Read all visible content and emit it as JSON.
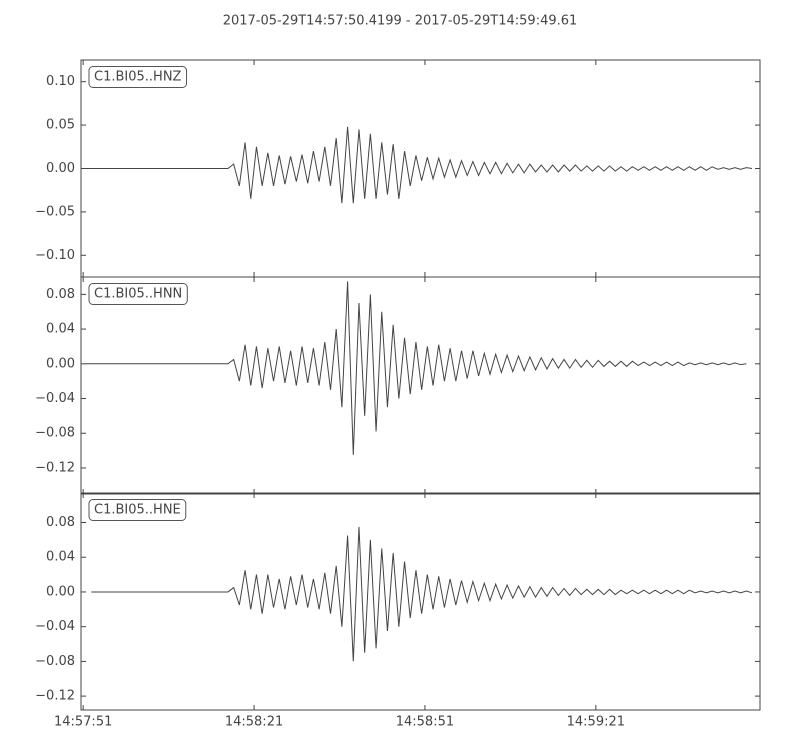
{
  "chart_data": {
    "type": "line",
    "title": "2017-05-29T14:57:50.4199  -  2017-05-29T14:59:49.61",
    "x": [
      1,
      2,
      3,
      4,
      5,
      6,
      7,
      8,
      9,
      10,
      11,
      12,
      13,
      14,
      15,
      16,
      17,
      18,
      19,
      20,
      21,
      22,
      23,
      24,
      25,
      26,
      27,
      28,
      29,
      30,
      31,
      32,
      33,
      34,
      35,
      36,
      37,
      38,
      39,
      40,
      41,
      42,
      43,
      44,
      45,
      46,
      47,
      48,
      49,
      50,
      51,
      52,
      53,
      54,
      55,
      56,
      57,
      58,
      59,
      60,
      61,
      62,
      63,
      64,
      65,
      66,
      67,
      68,
      69,
      70,
      71,
      72,
      73,
      74,
      75,
      76,
      77,
      78,
      79,
      80,
      81,
      82,
      83,
      84,
      85,
      86,
      87,
      88,
      89,
      90,
      91,
      92,
      93,
      94,
      95,
      96,
      97,
      98,
      99,
      100,
      101,
      102,
      103,
      104,
      105,
      106,
      107,
      108,
      109,
      110,
      111,
      112,
      113,
      114,
      115,
      116,
      117,
      118
    ],
    "xlim": [
      0.2,
      119.4
    ],
    "xticks": [
      {
        "value": 0.58,
        "label": "14:57:51"
      },
      {
        "value": 30.58,
        "label": "14:58:21"
      },
      {
        "value": 60.58,
        "label": "14:58:51"
      },
      {
        "value": 90.58,
        "label": "14:59:21"
      }
    ],
    "panels": [
      {
        "ylim": [
          -0.125,
          0.125
        ],
        "yticks": [
          {
            "value": 0.1,
            "label": "0.10"
          },
          {
            "value": 0.05,
            "label": "0.05"
          },
          {
            "value": 0,
            "label": "0.00"
          },
          {
            "value": -0.05,
            "label": "−0.05"
          },
          {
            "value": -0.1,
            "label": "−0.10"
          }
        ],
        "series": [
          {
            "name": "C1.BI05..HNZ",
            "color": "#444444",
            "values": [
              0,
              0,
              0,
              0,
              0,
              0,
              0,
              0,
              0,
              0,
              0,
              0,
              0,
              0,
              0,
              0,
              0,
              0,
              0,
              0,
              0,
              0,
              0,
              0,
              0,
              0,
              0.005,
              -0.02,
              0.03,
              -0.035,
              0.025,
              -0.02,
              0.018,
              -0.02,
              0.015,
              -0.018,
              0.014,
              -0.015,
              0.016,
              -0.017,
              0.02,
              -0.015,
              0.025,
              -0.02,
              0.035,
              -0.04,
              0.048,
              -0.04,
              0.045,
              -0.035,
              0.04,
              -0.035,
              0.03,
              -0.03,
              0.028,
              -0.035,
              0.02,
              -0.02,
              0.015,
              -0.014,
              0.013,
              -0.012,
              0.012,
              -0.01,
              0.01,
              -0.01,
              0.009,
              -0.008,
              0.008,
              -0.008,
              0.007,
              -0.006,
              0.007,
              -0.006,
              0.006,
              -0.005,
              0.005,
              -0.005,
              0.005,
              -0.004,
              0.004,
              -0.004,
              0.004,
              -0.004,
              0.004,
              -0.003,
              0.004,
              -0.003,
              0.003,
              -0.003,
              0.003,
              -0.003,
              0.003,
              -0.003,
              0.002,
              -0.003,
              0.002,
              -0.002,
              0.002,
              -0.002,
              0.002,
              -0.002,
              0.002,
              -0.002,
              0.002,
              -0.002,
              0.002,
              -0.002,
              0.002,
              -0.002,
              0.002,
              -0.001,
              0.001,
              -0.001,
              0.001,
              -0.001,
              0.001,
              0
            ]
          }
        ]
      },
      {
        "ylim": [
          -0.15,
          0.1
        ],
        "yticks": [
          0.08,
          0.04,
          {
            "value": 0,
            "label": "0.00"
          },
          {
            "value": -0.04,
            "label": "−0.04"
          },
          {
            "value": -0.08,
            "label": "−0.08"
          },
          {
            "value": -0.12,
            "label": "−0.12"
          }
        ],
        "series": [
          {
            "name": "C1.BI05..HNN",
            "color": "#444444",
            "values": [
              0,
              0,
              0,
              0,
              0,
              0,
              0,
              0,
              0,
              0,
              0,
              0,
              0,
              0,
              0,
              0,
              0,
              0,
              0,
              0,
              0,
              0,
              0,
              0,
              0,
              0,
              0.005,
              -0.02,
              0.022,
              -0.025,
              0.02,
              -0.028,
              0.018,
              -0.02,
              0.02,
              -0.022,
              0.015,
              -0.025,
              0.02,
              -0.022,
              0.018,
              -0.025,
              0.025,
              -0.03,
              0.04,
              -0.05,
              0.095,
              -0.105,
              0.07,
              -0.06,
              0.08,
              -0.078,
              0.06,
              -0.05,
              0.045,
              -0.04,
              0.03,
              -0.035,
              0.025,
              -0.03,
              0.02,
              -0.025,
              0.022,
              -0.02,
              0.018,
              -0.02,
              0.015,
              -0.017,
              0.015,
              -0.014,
              0.012,
              -0.012,
              0.011,
              -0.01,
              0.01,
              -0.009,
              0.009,
              -0.008,
              0.008,
              -0.007,
              0.007,
              -0.006,
              0.006,
              -0.005,
              0.005,
              -0.005,
              0.005,
              -0.004,
              0.004,
              -0.004,
              0.004,
              -0.003,
              0.003,
              -0.003,
              0.003,
              -0.003,
              0.003,
              -0.002,
              0.002,
              -0.002,
              0.002,
              -0.002,
              0.002,
              -0.002,
              0.002,
              -0.002,
              0.001,
              -0.001,
              0.001,
              -0.001,
              0.001,
              -0.001,
              0.001,
              -0.001,
              0.001,
              -0.001,
              0,
              null
            ]
          }
        ]
      },
      {
        "ylim": [
          -0.136,
          0.114
        ],
        "yticks": [
          0.08,
          0.04,
          {
            "value": 0,
            "label": "0.00"
          },
          {
            "value": -0.04,
            "label": "−0.04"
          },
          {
            "value": -0.08,
            "label": "−0.08"
          },
          {
            "value": -0.12,
            "label": "−0.12"
          }
        ],
        "series": [
          {
            "name": "C1.BI05..HNE",
            "color": "#444444",
            "values": [
              null,
              0,
              0,
              0,
              0,
              0,
              0,
              0,
              0,
              0,
              0,
              0,
              0,
              0,
              0,
              0,
              0,
              0,
              0,
              0,
              0,
              0,
              0,
              0,
              0,
              0,
              0.005,
              -0.015,
              0.025,
              -0.02,
              0.02,
              -0.025,
              0.02,
              -0.018,
              0.015,
              -0.02,
              0.018,
              -0.015,
              0.02,
              -0.018,
              0.015,
              -0.02,
              0.022,
              -0.025,
              0.03,
              -0.04,
              0.065,
              -0.08,
              0.075,
              -0.07,
              0.06,
              -0.065,
              0.05,
              -0.045,
              0.045,
              -0.04,
              0.035,
              -0.03,
              0.025,
              -0.025,
              0.02,
              -0.02,
              0.018,
              -0.018,
              0.015,
              -0.015,
              0.013,
              -0.012,
              0.012,
              -0.01,
              0.01,
              -0.01,
              0.009,
              -0.008,
              0.008,
              -0.007,
              0.007,
              -0.006,
              0.006,
              -0.006,
              0.005,
              -0.005,
              0.005,
              -0.004,
              0.004,
              -0.004,
              0.004,
              -0.003,
              0.003,
              -0.003,
              0.003,
              -0.003,
              0.003,
              -0.003,
              0.002,
              -0.002,
              0.002,
              -0.002,
              0.002,
              -0.002,
              0.002,
              -0.002,
              0.002,
              -0.002,
              0.002,
              -0.002,
              0.002,
              -0.001,
              0.001,
              -0.001,
              0.001,
              -0.001,
              0.001,
              -0.001,
              0.001,
              -0.001,
              0.001,
              -0.001
            ]
          }
        ]
      }
    ]
  }
}
